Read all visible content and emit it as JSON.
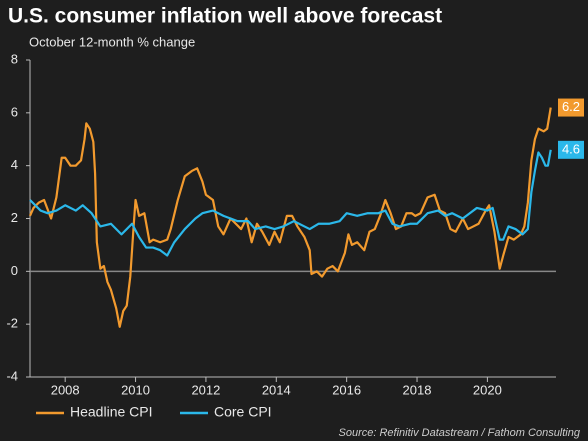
{
  "chart_data": {
    "type": "line",
    "title": "U.S. consumer inflation well above forecast",
    "subtitle": "October 12-month % change",
    "source": "Source: Refinitiv Datastream / Fathom Consulting",
    "xlim": [
      2007,
      2021.95
    ],
    "xticks": [
      2008,
      2010,
      2012,
      2014,
      2016,
      2018,
      2020
    ],
    "ylim": [
      -4,
      8
    ],
    "yticks": [
      -4,
      -2,
      0,
      2,
      4,
      6,
      8
    ],
    "series": [
      {
        "name": "Headline CPI",
        "color": "#f29a2e",
        "x": [
          2007.0,
          2007.1,
          2007.25,
          2007.4,
          2007.6,
          2007.75,
          2007.9,
          2008.0,
          2008.15,
          2008.3,
          2008.45,
          2008.55,
          2008.6,
          2008.7,
          2008.8,
          2008.85,
          2008.9,
          2009.0,
          2009.1,
          2009.2,
          2009.3,
          2009.45,
          2009.55,
          2009.65,
          2009.75,
          2009.85,
          2009.95,
          2010.0,
          2010.1,
          2010.25,
          2010.4,
          2010.5,
          2010.7,
          2010.9,
          2011.0,
          2011.2,
          2011.4,
          2011.6,
          2011.75,
          2011.9,
          2012.0,
          2012.2,
          2012.35,
          2012.5,
          2012.7,
          2012.85,
          2013.0,
          2013.15,
          2013.3,
          2013.45,
          2013.6,
          2013.8,
          2013.95,
          2014.1,
          2014.3,
          2014.45,
          2014.6,
          2014.8,
          2014.95,
          2015.0,
          2015.15,
          2015.3,
          2015.45,
          2015.6,
          2015.75,
          2015.95,
          2016.05,
          2016.15,
          2016.3,
          2016.5,
          2016.65,
          2016.8,
          2016.95,
          2017.1,
          2017.25,
          2017.4,
          2017.55,
          2017.7,
          2017.85,
          2017.95,
          2018.1,
          2018.3,
          2018.5,
          2018.65,
          2018.8,
          2018.95,
          2019.1,
          2019.3,
          2019.45,
          2019.6,
          2019.75,
          2019.95,
          2020.05,
          2020.2,
          2020.35,
          2020.45,
          2020.6,
          2020.75,
          2020.95,
          2021.05,
          2021.15,
          2021.25,
          2021.35,
          2021.45,
          2021.6,
          2021.7,
          2021.8
        ],
        "values": [
          2.1,
          2.4,
          2.6,
          2.7,
          2.0,
          2.8,
          4.3,
          4.3,
          4.0,
          4.0,
          4.2,
          5.0,
          5.6,
          5.4,
          4.9,
          3.7,
          1.1,
          0.1,
          0.2,
          -0.4,
          -0.7,
          -1.4,
          -2.1,
          -1.5,
          -1.3,
          -0.2,
          1.8,
          2.7,
          2.1,
          2.2,
          1.1,
          1.2,
          1.1,
          1.2,
          1.6,
          2.7,
          3.6,
          3.8,
          3.9,
          3.4,
          2.9,
          2.7,
          1.7,
          1.4,
          2.0,
          1.8,
          1.6,
          2.0,
          1.1,
          1.8,
          1.5,
          1.0,
          1.5,
          1.1,
          2.1,
          2.1,
          1.7,
          1.3,
          0.8,
          -0.1,
          0.0,
          -0.2,
          0.1,
          0.2,
          0.0,
          0.7,
          1.4,
          1.0,
          1.1,
          0.8,
          1.5,
          1.6,
          2.1,
          2.7,
          2.2,
          1.6,
          1.7,
          2.2,
          2.2,
          2.1,
          2.2,
          2.8,
          2.9,
          2.3,
          2.2,
          1.6,
          1.5,
          2.0,
          1.6,
          1.7,
          1.8,
          2.3,
          2.5,
          1.5,
          0.1,
          0.6,
          1.3,
          1.2,
          1.4,
          1.7,
          2.6,
          4.2,
          5.0,
          5.4,
          5.3,
          5.4,
          6.2
        ]
      },
      {
        "name": "Core CPI",
        "color": "#2bb8ea",
        "x": [
          2007.0,
          2007.3,
          2007.5,
          2007.75,
          2008.0,
          2008.3,
          2008.5,
          2008.75,
          2009.0,
          2009.3,
          2009.6,
          2009.9,
          2010.1,
          2010.3,
          2010.5,
          2010.7,
          2010.9,
          2011.1,
          2011.4,
          2011.7,
          2011.9,
          2012.2,
          2012.5,
          2012.7,
          2012.9,
          2013.2,
          2013.4,
          2013.7,
          2013.95,
          2014.2,
          2014.5,
          2014.8,
          2014.95,
          2015.2,
          2015.5,
          2015.8,
          2016.0,
          2016.3,
          2016.6,
          2016.9,
          2017.1,
          2017.3,
          2017.5,
          2017.8,
          2018.0,
          2018.3,
          2018.6,
          2018.8,
          2019.0,
          2019.3,
          2019.5,
          2019.7,
          2020.0,
          2020.15,
          2020.35,
          2020.45,
          2020.6,
          2020.8,
          2021.0,
          2021.15,
          2021.25,
          2021.35,
          2021.45,
          2021.55,
          2021.65,
          2021.72,
          2021.8
        ],
        "values": [
          2.7,
          2.3,
          2.2,
          2.3,
          2.5,
          2.3,
          2.5,
          2.2,
          1.7,
          1.8,
          1.4,
          1.8,
          1.3,
          0.9,
          0.9,
          0.8,
          0.6,
          1.1,
          1.6,
          2.0,
          2.2,
          2.3,
          2.1,
          2.0,
          1.9,
          1.9,
          1.6,
          1.7,
          1.6,
          1.7,
          1.9,
          1.7,
          1.6,
          1.8,
          1.8,
          1.9,
          2.2,
          2.1,
          2.2,
          2.2,
          2.3,
          1.8,
          1.7,
          1.8,
          1.8,
          2.2,
          2.3,
          2.1,
          2.2,
          2.0,
          2.2,
          2.4,
          2.3,
          2.4,
          1.2,
          1.2,
          1.7,
          1.6,
          1.4,
          1.6,
          3.0,
          3.8,
          4.5,
          4.3,
          4.0,
          4.0,
          4.6
        ]
      }
    ]
  }
}
